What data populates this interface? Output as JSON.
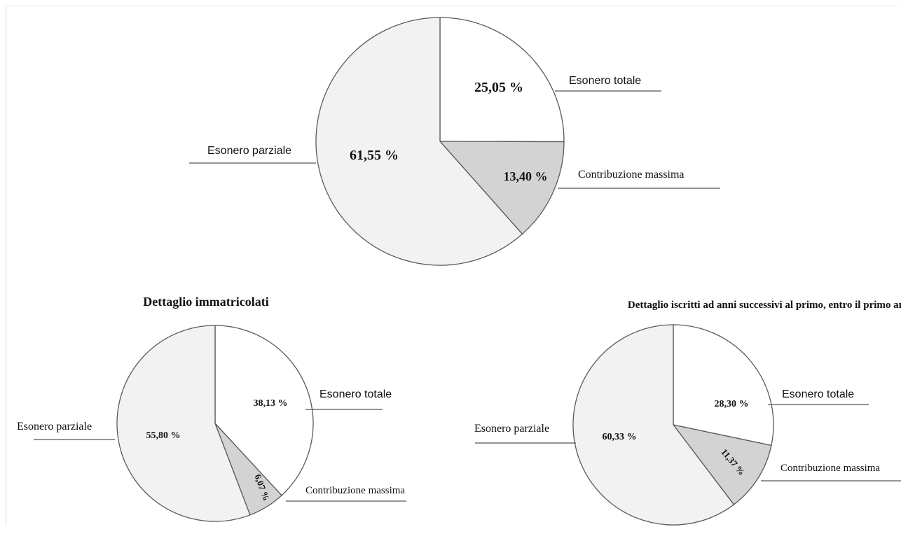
{
  "colors": {
    "esonero_totale": "#ffffff",
    "contribuzione_massima": "#d3d3d3",
    "esonero_parziale": "#f2f2f2",
    "outline": "#5a5a5a",
    "leader": "#555555",
    "text": "#111111"
  },
  "chart_data": [
    {
      "type": "pie",
      "title": "",
      "slices": [
        {
          "label": "Esonero totale",
          "value": 25.05,
          "value_label": "25,05 %"
        },
        {
          "label": "Contribuzione massima",
          "value": 13.4,
          "value_label": "13,40 %"
        },
        {
          "label": "Esonero parziale",
          "value": 61.55,
          "value_label": "61,55 %"
        }
      ]
    },
    {
      "type": "pie",
      "title": "Dettaglio immatricolati",
      "slices": [
        {
          "label": "Esonero totale",
          "value": 38.13,
          "value_label": "38,13 %"
        },
        {
          "label": "Contribuzione massima",
          "value": 6.07,
          "value_label": "6,07 %"
        },
        {
          "label": "Esonero parziale",
          "value": 55.8,
          "value_label": "55,80 %"
        }
      ]
    },
    {
      "type": "pie",
      "title": "Dettaglio iscritti ad anni successivi al primo, entro il primo anno fuori corso",
      "slices": [
        {
          "label": "Esonero totale",
          "value": 28.3,
          "value_label": "28,30 %"
        },
        {
          "label": "Contribuzione massima",
          "value": 11.37,
          "value_label": "11,37 %"
        },
        {
          "label": "Esonero parziale",
          "value": 60.33,
          "value_label": "60,33 %"
        }
      ]
    }
  ]
}
